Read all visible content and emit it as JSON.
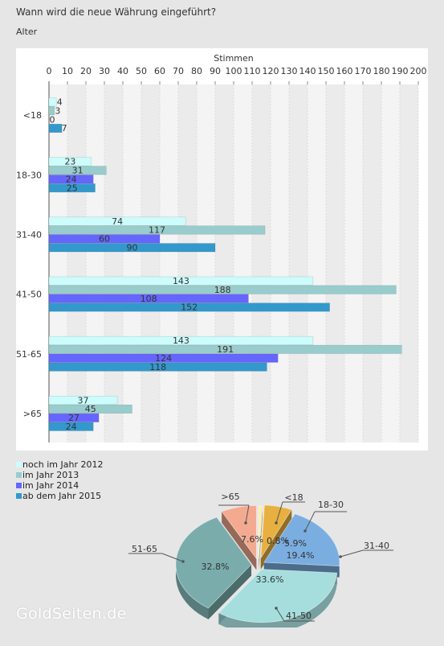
{
  "title": "Wann wird die neue Währung eingeführt?",
  "subtitle": "Alter",
  "watermark": "GoldSeiten.de",
  "colors": {
    "series": [
      "#ccfcfc",
      "#99cccc",
      "#6666ff",
      "#3399cc"
    ],
    "pie": [
      "#ffeeaa",
      "#e8b040",
      "#7aaee0",
      "#a6dede",
      "#7aacac",
      "#f4aa90"
    ],
    "plot_bg": "#f4f4f4",
    "grid_band": "#ebebeb"
  },
  "chart_data": [
    {
      "type": "bar",
      "orientation": "horizontal",
      "xlabel": "Stimmen",
      "xlim": [
        0,
        200
      ],
      "xticks": [
        0,
        10,
        20,
        30,
        40,
        50,
        60,
        70,
        80,
        90,
        100,
        110,
        120,
        130,
        140,
        150,
        160,
        170,
        180,
        190,
        200
      ],
      "categories": [
        "<18",
        "18-30",
        "31-40",
        "41-50",
        "51-65",
        ">65"
      ],
      "series": [
        {
          "name": "noch im Jahr 2012",
          "values": [
            4,
            23,
            74,
            143,
            143,
            37
          ]
        },
        {
          "name": "im Jahr 2013",
          "values": [
            3,
            31,
            117,
            188,
            191,
            45
          ]
        },
        {
          "name": "im Jahr 2014",
          "values": [
            0,
            24,
            60,
            108,
            124,
            27
          ]
        },
        {
          "name": "ab dem Jahr 2015",
          "values": [
            7,
            25,
            90,
            152,
            118,
            24
          ]
        }
      ],
      "legend": "bottom-left"
    },
    {
      "type": "pie",
      "style": "3d",
      "labels": [
        "<18",
        "18-30",
        "31-40",
        "41-50",
        "51-65",
        ">65"
      ],
      "values": [
        0.8,
        5.9,
        19.4,
        33.6,
        32.8,
        7.6
      ],
      "value_labels": [
        "0.8%",
        "5.9%",
        "19.4%",
        "33.6%",
        "32.8%",
        "7.6%"
      ]
    }
  ]
}
